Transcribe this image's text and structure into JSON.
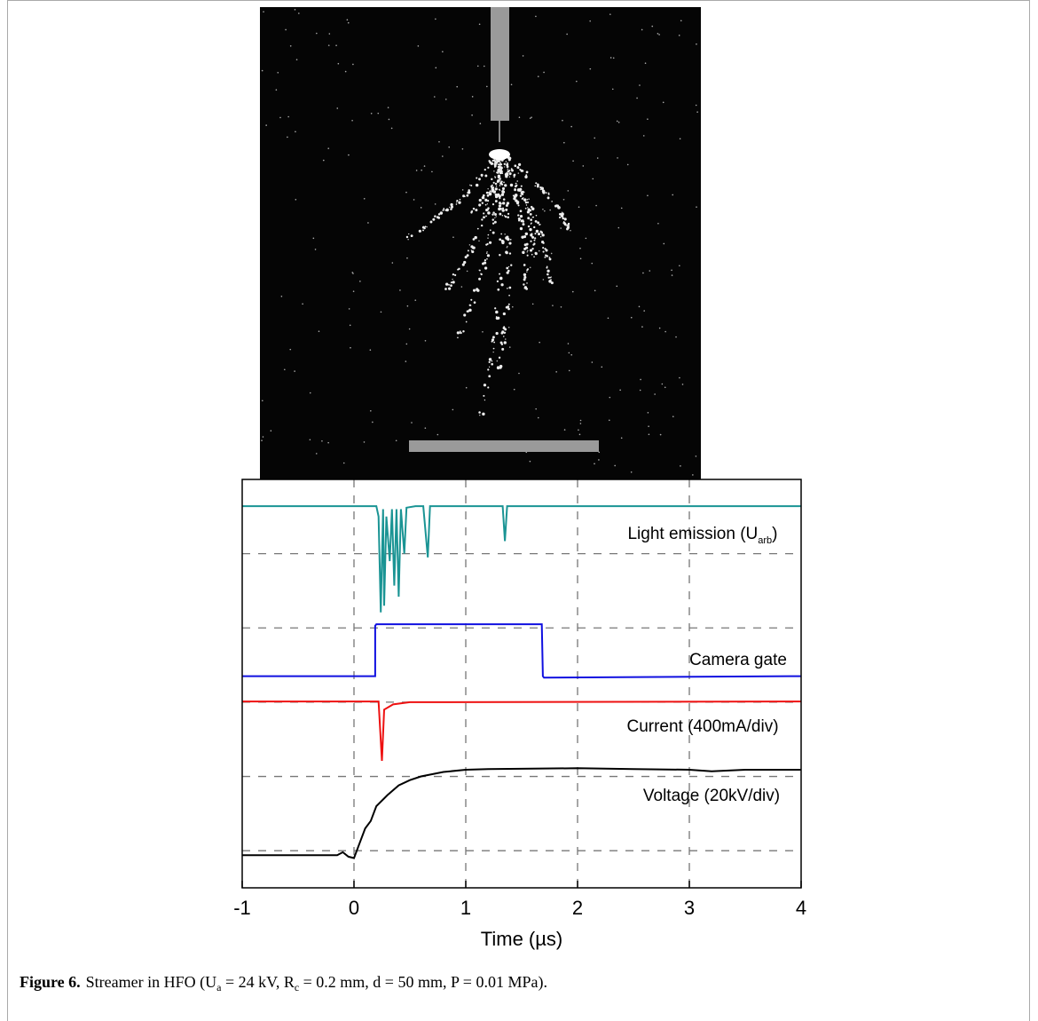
{
  "chart_data": {
    "type": "line",
    "xlabel": "Time (µs)",
    "xlim": [
      -1,
      4
    ],
    "xticks": [
      -1,
      0,
      1,
      2,
      3,
      4
    ],
    "ylim": [
      -0.5,
      5
    ],
    "ygrid": [
      0,
      1,
      2,
      3,
      4
    ],
    "xgrid": [
      0,
      1,
      2,
      3
    ],
    "series": [
      {
        "name": [
          "Light emission (U",
          "arb",
          ")"
        ],
        "color": "#1a9494",
        "x": [
          -1,
          0.2,
          0.22,
          0.24,
          0.26,
          0.27,
          0.29,
          0.32,
          0.34,
          0.36,
          0.38,
          0.4,
          0.42,
          0.45,
          0.47,
          0.55,
          0.62,
          0.66,
          0.68,
          1.33,
          1.35,
          1.37,
          4
        ],
        "values": [
          4.64,
          4.64,
          4.5,
          3.21,
          4.6,
          3.3,
          4.5,
          3.9,
          4.6,
          3.57,
          4.6,
          3.42,
          4.6,
          4.0,
          4.62,
          4.64,
          4.64,
          3.95,
          4.64,
          4.64,
          4.17,
          4.64,
          4.64
        ]
      },
      {
        "name": "Camera gate",
        "color": "#1010e0",
        "x": [
          -1,
          0.19,
          0.19,
          0.2,
          1.68,
          1.69,
          1.7,
          4
        ],
        "values": [
          2.35,
          2.35,
          3.03,
          3.05,
          3.05,
          2.35,
          2.33,
          2.35
        ]
      },
      {
        "name": "Current (400mA/div)",
        "color": "#ee1111",
        "x": [
          -1,
          0.22,
          0.25,
          0.27,
          0.35,
          0.5,
          4
        ],
        "values": [
          2.01,
          2.01,
          1.21,
          1.9,
          1.97,
          2.0,
          2.01
        ]
      },
      {
        "name": "Voltage (20kV/div)",
        "color": "#000000",
        "x": [
          -1,
          -0.15,
          -0.1,
          -0.05,
          0,
          0.05,
          0.1,
          0.15,
          0.2,
          0.3,
          0.4,
          0.5,
          0.6,
          0.8,
          1.0,
          1.2,
          2.0,
          2.5,
          3.0,
          3.2,
          3.5,
          4
        ],
        "values": [
          -0.06,
          -0.06,
          -0.02,
          -0.08,
          -0.1,
          0.1,
          0.3,
          0.4,
          0.6,
          0.75,
          0.88,
          0.95,
          1.0,
          1.06,
          1.09,
          1.1,
          1.11,
          1.1,
          1.09,
          1.07,
          1.09,
          1.09
        ]
      }
    ]
  },
  "caption": {
    "label": "Figure 6.",
    "parts": [
      "Streamer in HFO (U",
      "a",
      " = 24 kV, R",
      "c",
      " = 0.2 mm, d = 50 mm, P = 0.01 MPa)."
    ]
  }
}
